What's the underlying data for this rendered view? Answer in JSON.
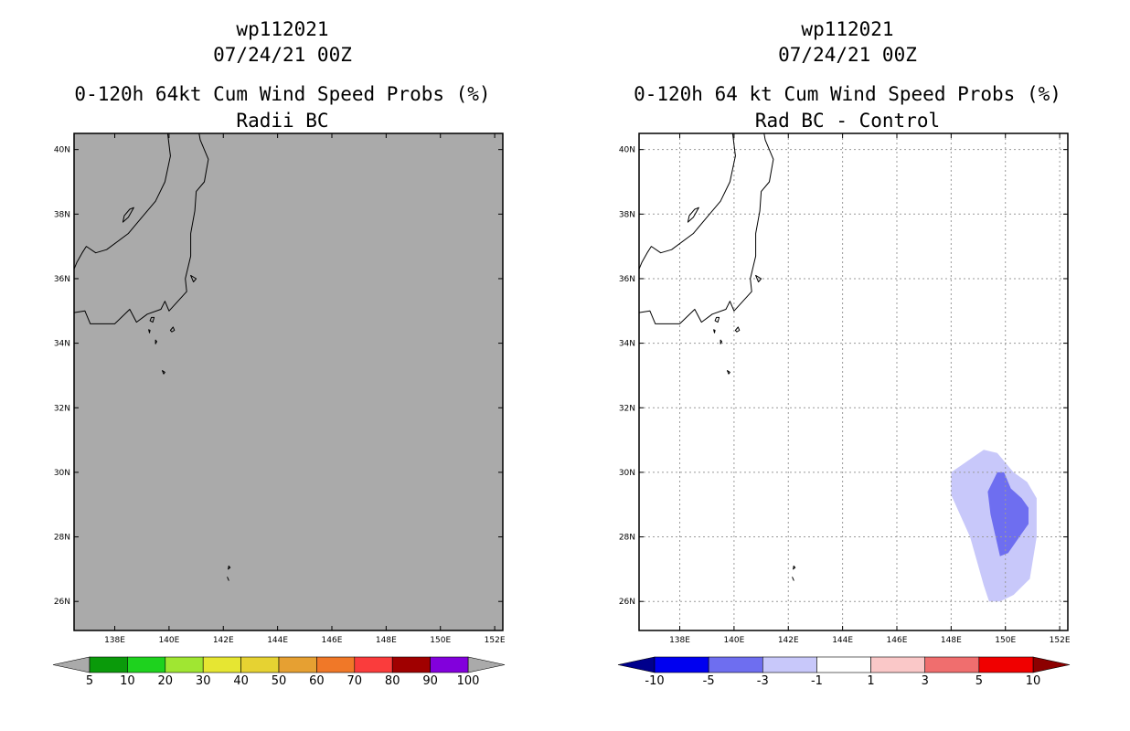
{
  "chart_data": [
    {
      "type": "contour-map",
      "title": "wp112021",
      "subtitle": "07/24/21 00Z",
      "heading": "0-120h 64kt Cum Wind Speed Probs (%)",
      "subheading": "Radii BC",
      "xlim": [
        136.5,
        152.3
      ],
      "ylim": [
        25.1,
        40.5
      ],
      "x_ticks": [
        138,
        140,
        142,
        144,
        146,
        148,
        150,
        152
      ],
      "x_tick_labels": [
        "138E",
        "140E",
        "142E",
        "144E",
        "146E",
        "148E",
        "150E",
        "152E"
      ],
      "y_ticks": [
        26,
        28,
        30,
        32,
        34,
        36,
        38,
        40
      ],
      "y_tick_labels": [
        "26N",
        "28N",
        "30N",
        "32N",
        "34N",
        "36N",
        "38N",
        "40N"
      ],
      "grid": false,
      "background": "#aaaaaa",
      "colorbar": {
        "labels": [
          "5",
          "10",
          "20",
          "30",
          "40",
          "50",
          "60",
          "70",
          "80",
          "90",
          "100"
        ],
        "colors": [
          "#aaaaaa",
          "#0a9a0a",
          "#1ed21e",
          "#a0e632",
          "#e6e632",
          "#e6d232",
          "#e6a032",
          "#f07828",
          "#fa3c3c",
          "#a00000",
          "#8200dc",
          "#aaaaaa"
        ]
      },
      "contours": []
    },
    {
      "type": "contour-map",
      "title": "wp112021",
      "subtitle": "07/24/21 00Z",
      "heading": "0-120h 64 kt Cum Wind Speed Probs (%)",
      "subheading": "Rad BC - Control",
      "xlim": [
        136.5,
        152.3
      ],
      "ylim": [
        25.1,
        40.5
      ],
      "x_ticks": [
        138,
        140,
        142,
        144,
        146,
        148,
        150,
        152
      ],
      "x_tick_labels": [
        "138E",
        "140E",
        "142E",
        "144E",
        "146E",
        "148E",
        "150E",
        "152E"
      ],
      "y_ticks": [
        26,
        28,
        30,
        32,
        34,
        36,
        38,
        40
      ],
      "y_tick_labels": [
        "26N",
        "28N",
        "30N",
        "32N",
        "34N",
        "36N",
        "38N",
        "40N"
      ],
      "grid": true,
      "background": "#ffffff",
      "colorbar": {
        "labels": [
          "-10",
          "-5",
          "-3",
          "-1",
          "1",
          "3",
          "5",
          "10"
        ],
        "colors": [
          "#00008c",
          "#0000f0",
          "#6e6ef0",
          "#c8c8fa",
          "#ffffff",
          "#fac8c8",
          "#f06e6e",
          "#f00000",
          "#8c0000"
        ]
      },
      "contours": [
        {
          "range": "-3 to -1",
          "color": "#c8c8fa",
          "polygon": [
            [
              148.0,
              30.0
            ],
            [
              149.2,
              30.7
            ],
            [
              149.7,
              30.6
            ],
            [
              150.3,
              30.0
            ],
            [
              150.8,
              29.7
            ],
            [
              151.15,
              29.2
            ],
            [
              151.15,
              28.0
            ],
            [
              150.9,
              26.7
            ],
            [
              150.3,
              26.2
            ],
            [
              149.8,
              26.0
            ],
            [
              149.4,
              26.0
            ],
            [
              149.2,
              26.5
            ],
            [
              148.7,
              28.0
            ],
            [
              148.0,
              29.3
            ]
          ]
        },
        {
          "range": "-5 to -3",
          "color": "#6e6ef0",
          "polygon": [
            [
              149.7,
              30.0
            ],
            [
              149.95,
              30.0
            ],
            [
              150.2,
              29.5
            ],
            [
              150.6,
              29.2
            ],
            [
              150.85,
              28.9
            ],
            [
              150.85,
              28.4
            ],
            [
              150.6,
              28.1
            ],
            [
              150.1,
              27.5
            ],
            [
              149.8,
              27.4
            ],
            [
              149.45,
              28.7
            ],
            [
              149.35,
              29.4
            ]
          ]
        }
      ]
    }
  ]
}
